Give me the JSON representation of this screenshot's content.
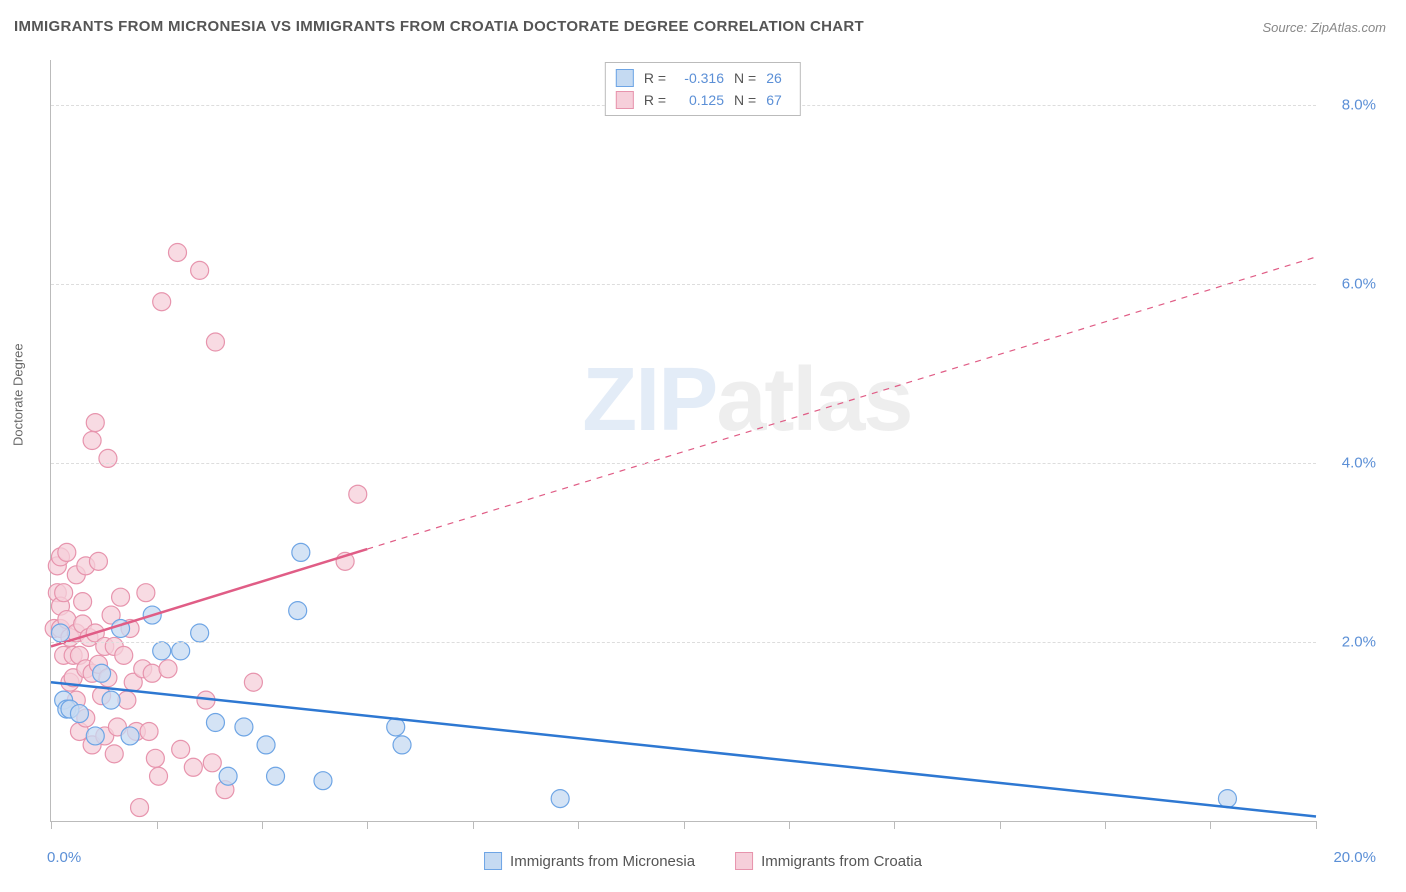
{
  "title": "IMMIGRANTS FROM MICRONESIA VS IMMIGRANTS FROM CROATIA DOCTORATE DEGREE CORRELATION CHART",
  "source": "Source: ZipAtlas.com",
  "ylabel": "Doctorate Degree",
  "watermark_zip": "ZIP",
  "watermark_atlas": "atlas",
  "chart": {
    "type": "scatter",
    "xlim": [
      0,
      20
    ],
    "ylim": [
      0,
      8.5
    ],
    "xtick_positions": [
      0,
      1.67,
      3.33,
      5,
      6.67,
      8.33,
      10,
      11.67,
      13.33,
      15,
      16.67,
      18.33,
      20
    ],
    "ytick_positions": [
      2,
      4,
      6,
      8
    ],
    "ytick_labels": [
      "2.0%",
      "4.0%",
      "6.0%",
      "8.0%"
    ],
    "x_min_label": "0.0%",
    "x_max_label": "20.0%",
    "background_color": "#ffffff",
    "grid_color": "#dddddd",
    "axis_color": "#bbbbbb",
    "label_color": "#5b8fd6",
    "marker_radius": 9,
    "marker_stroke_width": 1.2,
    "trend_line_width": 2.5
  },
  "series": {
    "blue": {
      "label": "Immigrants from Micronesia",
      "fill_color": "#c5daf2",
      "stroke_color": "#6ea5e5",
      "line_color": "#2e78d2",
      "R": "-0.316",
      "N": "26",
      "trend": {
        "x1": 0,
        "y1": 1.55,
        "x2": 20,
        "y2": 0.05,
        "solid_until_x": 20
      },
      "points": [
        [
          0.15,
          2.1
        ],
        [
          0.2,
          1.35
        ],
        [
          0.25,
          1.25
        ],
        [
          0.3,
          1.25
        ],
        [
          0.45,
          1.2
        ],
        [
          0.7,
          0.95
        ],
        [
          0.8,
          1.65
        ],
        [
          0.95,
          1.35
        ],
        [
          1.1,
          2.15
        ],
        [
          1.25,
          0.95
        ],
        [
          1.6,
          2.3
        ],
        [
          1.75,
          1.9
        ],
        [
          2.05,
          1.9
        ],
        [
          2.35,
          2.1
        ],
        [
          2.6,
          1.1
        ],
        [
          2.8,
          0.5
        ],
        [
          3.05,
          1.05
        ],
        [
          3.4,
          0.85
        ],
        [
          3.55,
          0.5
        ],
        [
          3.9,
          2.35
        ],
        [
          3.95,
          3.0
        ],
        [
          4.3,
          0.45
        ],
        [
          5.45,
          1.05
        ],
        [
          5.55,
          0.85
        ],
        [
          8.05,
          0.25
        ],
        [
          18.6,
          0.25
        ]
      ]
    },
    "pink": {
      "label": "Immigrants from Croatia",
      "fill_color": "#f6cfda",
      "stroke_color": "#e794ad",
      "line_color": "#e05d86",
      "R": "0.125",
      "N": "67",
      "trend": {
        "x1": 0,
        "y1": 1.95,
        "x2": 20,
        "y2": 6.3,
        "solid_until_x": 5.0
      },
      "points": [
        [
          0.05,
          2.15
        ],
        [
          0.1,
          2.85
        ],
        [
          0.1,
          2.55
        ],
        [
          0.15,
          2.95
        ],
        [
          0.15,
          2.4
        ],
        [
          0.15,
          2.15
        ],
        [
          0.2,
          1.85
        ],
        [
          0.2,
          2.55
        ],
        [
          0.25,
          3.0
        ],
        [
          0.25,
          2.25
        ],
        [
          0.3,
          2.05
        ],
        [
          0.3,
          1.55
        ],
        [
          0.35,
          1.6
        ],
        [
          0.35,
          1.85
        ],
        [
          0.4,
          2.75
        ],
        [
          0.4,
          2.1
        ],
        [
          0.4,
          1.35
        ],
        [
          0.45,
          1.85
        ],
        [
          0.45,
          1.0
        ],
        [
          0.5,
          2.45
        ],
        [
          0.5,
          2.2
        ],
        [
          0.55,
          2.85
        ],
        [
          0.55,
          1.7
        ],
        [
          0.55,
          1.15
        ],
        [
          0.6,
          2.05
        ],
        [
          0.65,
          4.25
        ],
        [
          0.65,
          1.65
        ],
        [
          0.65,
          0.85
        ],
        [
          0.7,
          4.45
        ],
        [
          0.7,
          2.1
        ],
        [
          0.75,
          2.9
        ],
        [
          0.75,
          1.75
        ],
        [
          0.8,
          1.4
        ],
        [
          0.85,
          1.95
        ],
        [
          0.85,
          0.95
        ],
        [
          0.9,
          4.05
        ],
        [
          0.9,
          1.6
        ],
        [
          0.95,
          2.3
        ],
        [
          1.0,
          1.95
        ],
        [
          1.0,
          0.75
        ],
        [
          1.05,
          1.05
        ],
        [
          1.1,
          2.5
        ],
        [
          1.15,
          1.85
        ],
        [
          1.2,
          1.35
        ],
        [
          1.25,
          2.15
        ],
        [
          1.3,
          1.55
        ],
        [
          1.35,
          1.0
        ],
        [
          1.4,
          0.15
        ],
        [
          1.45,
          1.7
        ],
        [
          1.5,
          2.55
        ],
        [
          1.55,
          1.0
        ],
        [
          1.6,
          1.65
        ],
        [
          1.65,
          0.7
        ],
        [
          1.7,
          0.5
        ],
        [
          1.75,
          5.8
        ],
        [
          1.85,
          1.7
        ],
        [
          2.0,
          6.35
        ],
        [
          2.05,
          0.8
        ],
        [
          2.25,
          0.6
        ],
        [
          2.35,
          6.15
        ],
        [
          2.45,
          1.35
        ],
        [
          2.55,
          0.65
        ],
        [
          2.6,
          5.35
        ],
        [
          2.75,
          0.35
        ],
        [
          3.2,
          1.55
        ],
        [
          4.85,
          3.65
        ],
        [
          4.65,
          2.9
        ]
      ]
    }
  },
  "legend_top": {
    "r_label": "R =",
    "n_label": "N ="
  }
}
